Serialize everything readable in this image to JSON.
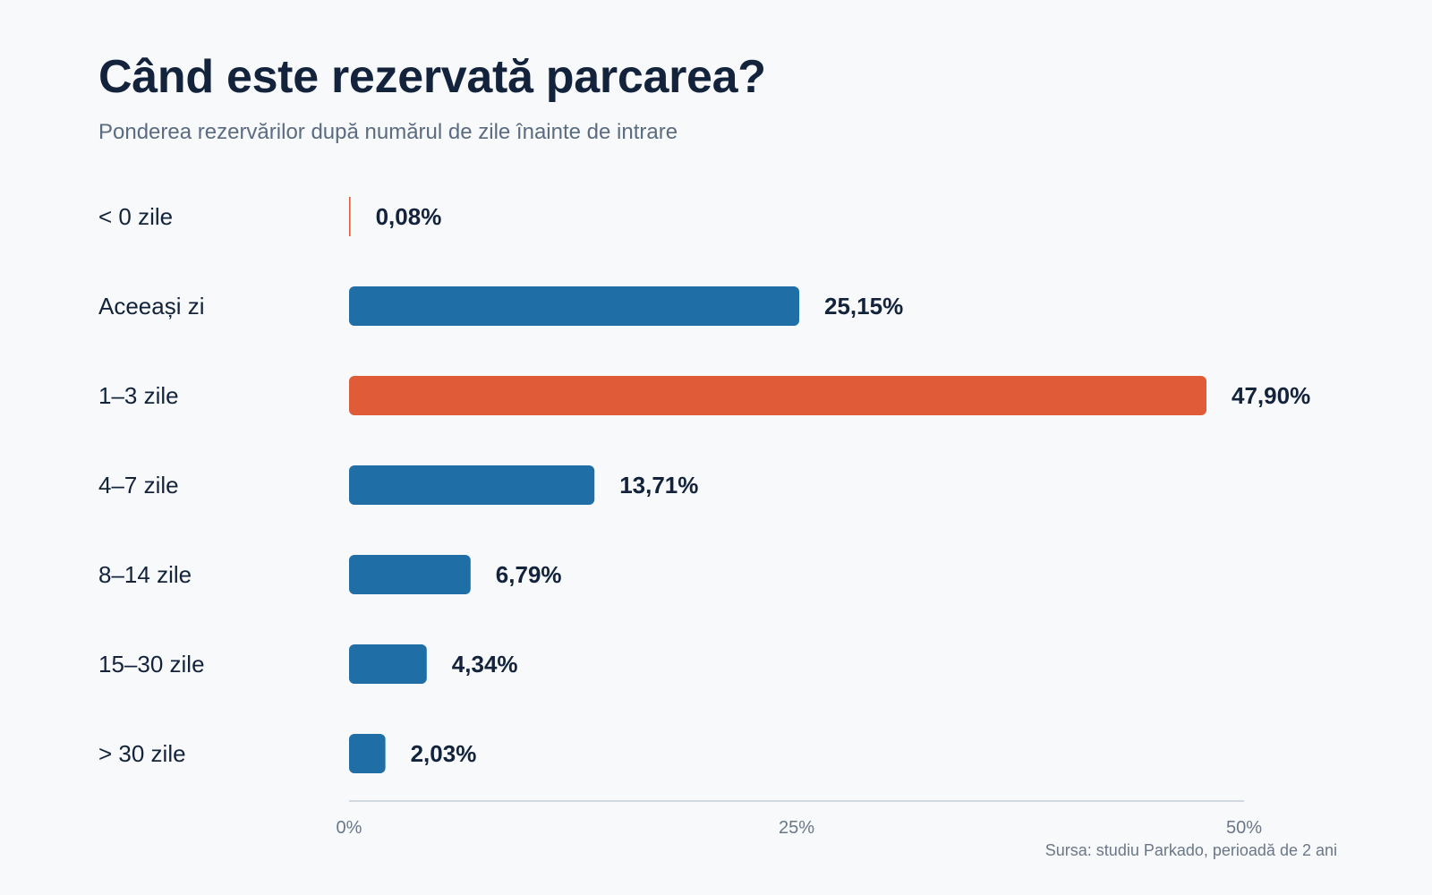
{
  "chart_data": {
    "type": "bar",
    "orientation": "horizontal",
    "title": "Când este rezervată parcarea?",
    "subtitle": "Ponderea rezervărilor după numărul de zile înainte de intrare",
    "categories": [
      "< 0 zile",
      "Aceeași zi",
      "1–3 zile",
      "4–7 zile",
      "8–14 zile",
      "15–30 zile",
      "> 30 zile"
    ],
    "values": [
      0.08,
      25.15,
      47.9,
      13.71,
      6.79,
      4.34,
      2.03
    ],
    "value_labels": [
      "0,08%",
      "25,15%",
      "47,90%",
      "13,71%",
      "6,79%",
      "4,34%",
      "2,03%"
    ],
    "highlight_indices": [
      0,
      2
    ],
    "colors": {
      "default": "#1f6fa6",
      "highlight": "#e05c38",
      "axis": "#c5cdd8"
    },
    "xlim": [
      0,
      50
    ],
    "xticks": [
      0,
      25,
      50
    ],
    "xtick_labels": [
      "0%",
      "25%",
      "50%"
    ],
    "grid": false,
    "legend": "none",
    "source": "Sursa: studiu Parkado, perioadă de 2 ani"
  }
}
